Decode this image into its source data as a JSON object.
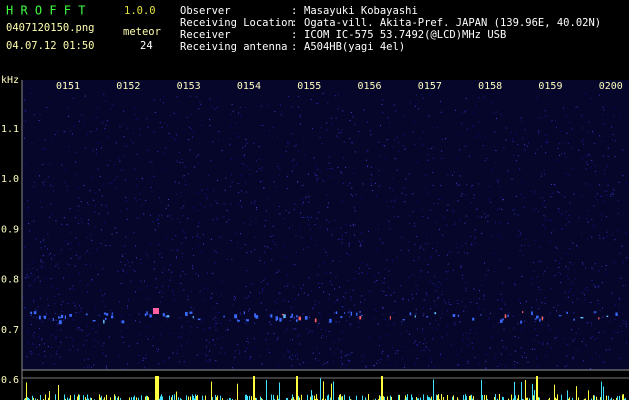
{
  "header": {
    "app_name": "H R O F F T",
    "version": "1.0.0",
    "filename": "0407120150.png",
    "datetime": "04.07.12 01:50",
    "meteor_label": "meteor",
    "meteor_count": 24
  },
  "info": [
    {
      "label": "Observer",
      "value": "Masayuki Kobayashi"
    },
    {
      "label": "Receiving Location",
      "value": "Ogata-vill. Akita-Pref. JAPAN (139.96E, 40.02N)"
    },
    {
      "label": "Receiver",
      "value": "ICOM IC-575 53.7492(@LCD)MHz USB"
    },
    {
      "label": "Receiving antenna",
      "value": "A504HB(yagi 4el)"
    }
  ],
  "spectrogram": {
    "unit": "kHz",
    "time_labels": [
      "0151",
      "0152",
      "0153",
      "0154",
      "0155",
      "0156",
      "0157",
      "0158",
      "0159",
      "0200"
    ],
    "freq_labels": [
      "1.1",
      "1.0",
      "0.9",
      "0.8",
      "0.7",
      "0.6"
    ]
  }
}
